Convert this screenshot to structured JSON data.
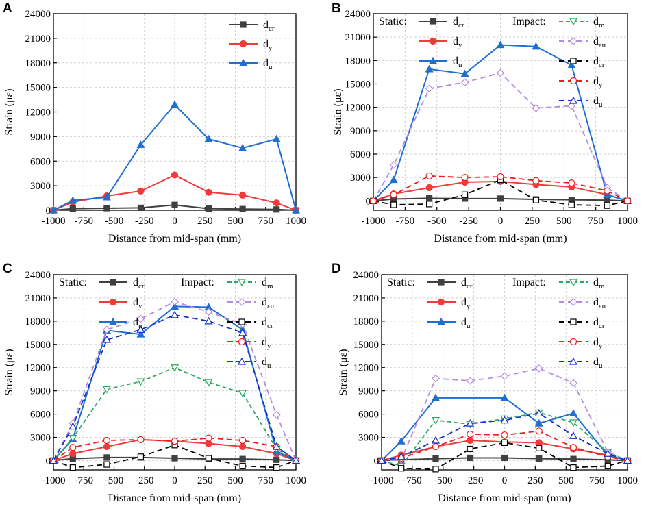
{
  "colors": {
    "static_cr": "#404040",
    "static_y": "#f03b3b",
    "static_u": "#1f6fd0",
    "impact_m": "#2ea860",
    "impact_eu": "#b48be0",
    "impact_cr": "#000000",
    "impact_y": "#ee1c1c",
    "impact_u": "#1230c8"
  },
  "chart_data": [
    {
      "panel": "A",
      "type": "line",
      "xlabel": "Distance from mid-span (mm)",
      "ylabel": "Strain (με)",
      "xlim": [
        -1000,
        1000
      ],
      "ylim": [
        0,
        24000
      ],
      "xticks": [
        "-1000",
        "-750",
        "-500",
        "-250",
        "0",
        "250",
        "500",
        "750",
        "1000"
      ],
      "yticks": [
        "0",
        "3000",
        "6000",
        "9000",
        "12000",
        "15000",
        "18000",
        "21000",
        "24000"
      ],
      "legend": {
        "static_label": "",
        "impact_label": ""
      },
      "series": [
        {
          "key": "s_cr",
          "name": "d",
          "sub": "cr",
          "group": "static",
          "color_key": "static_cr",
          "marker": "square-filled",
          "x": [
            -1000,
            -840,
            -560,
            -280,
            0,
            280,
            560,
            840,
            1000
          ],
          "y": [
            0,
            200,
            250,
            300,
            650,
            200,
            150,
            100,
            0
          ]
        },
        {
          "key": "s_y",
          "name": "d",
          "sub": "y",
          "group": "static",
          "color_key": "static_y",
          "marker": "circle-filled",
          "x": [
            -1000,
            -840,
            -560,
            -280,
            0,
            280,
            560,
            840,
            1000
          ],
          "y": [
            0,
            1000,
            1750,
            2350,
            4300,
            2200,
            1850,
            900,
            0
          ]
        },
        {
          "key": "s_u",
          "name": "d",
          "sub": "u",
          "group": "static",
          "color_key": "static_u",
          "marker": "triangle-filled",
          "x": [
            -1000,
            -840,
            -560,
            -280,
            0,
            280,
            560,
            840,
            1000
          ],
          "y": [
            0,
            1200,
            1600,
            8000,
            12900,
            8700,
            7600,
            8700,
            0
          ]
        }
      ]
    },
    {
      "panel": "B",
      "type": "line",
      "xlabel": "Distance from mid-span (mm)",
      "ylabel": "Strain (με)",
      "xlim": [
        -1000,
        1000
      ],
      "ylim": [
        -1200,
        24000
      ],
      "xticks": [
        "-1000",
        "-750",
        "-500",
        "-250",
        "0",
        "250",
        "500",
        "750",
        "1000"
      ],
      "yticks": [
        "0",
        "3000",
        "6000",
        "9000",
        "12000",
        "15000",
        "18000",
        "21000",
        "24000"
      ],
      "legend": {
        "static_label": "Static:",
        "impact_label": "Impact:"
      },
      "series": [
        {
          "key": "s_cr",
          "name": "d",
          "sub": "cr",
          "group": "static",
          "color_key": "static_cr",
          "marker": "square-filled",
          "x": [
            -1000,
            -840,
            -560,
            -280,
            0,
            280,
            560,
            840,
            1000
          ],
          "y": [
            0,
            250,
            350,
            300,
            300,
            200,
            150,
            100,
            0
          ]
        },
        {
          "key": "s_y",
          "name": "d",
          "sub": "y",
          "group": "static",
          "color_key": "static_y",
          "marker": "circle-filled",
          "x": [
            -1000,
            -840,
            -560,
            -280,
            0,
            280,
            560,
            840,
            1000
          ],
          "y": [
            0,
            900,
            1700,
            2400,
            2500,
            2100,
            1800,
            800,
            0
          ]
        },
        {
          "key": "s_u",
          "name": "d",
          "sub": "u",
          "group": "static",
          "color_key": "static_u",
          "marker": "triangle-filled",
          "x": [
            -1000,
            -840,
            -560,
            -280,
            0,
            280,
            560,
            840,
            1000
          ],
          "y": [
            0,
            2700,
            16900,
            16300,
            20000,
            19800,
            17400,
            800,
            0
          ]
        },
        {
          "key": "i_m",
          "name": "d",
          "sub": "m",
          "group": "impact",
          "color_key": "impact_m",
          "marker": "triangle-down-open",
          "dash": "6,4",
          "x": [],
          "y": []
        },
        {
          "key": "i_eu",
          "name": "d",
          "sub": "εu",
          "group": "impact",
          "color_key": "impact_eu",
          "marker": "diamond-open",
          "dash": "8,5",
          "x": [
            -1000,
            -840,
            -560,
            -280,
            0,
            280,
            560,
            840,
            1000
          ],
          "y": [
            0,
            4600,
            14400,
            15200,
            16400,
            11900,
            12200,
            1700,
            0
          ]
        },
        {
          "key": "i_cr",
          "name": "d",
          "sub": "cr",
          "group": "impact",
          "color_key": "impact_cr",
          "marker": "square-open",
          "dash": "8,5",
          "x": [
            -1000,
            -840,
            -560,
            -280,
            0,
            280,
            560,
            840,
            1000
          ],
          "y": [
            0,
            -500,
            -400,
            800,
            2700,
            100,
            -500,
            -600,
            0
          ]
        },
        {
          "key": "i_y",
          "name": "d",
          "sub": "y",
          "group": "impact",
          "color_key": "impact_y",
          "marker": "circle-open",
          "dash": "8,5",
          "x": [
            -1000,
            -840,
            -560,
            -280,
            0,
            280,
            560,
            840,
            1000
          ],
          "y": [
            0,
            800,
            3200,
            3000,
            3100,
            2600,
            2300,
            1300,
            0
          ]
        },
        {
          "key": "i_u",
          "name": "d",
          "sub": "u",
          "group": "impact",
          "color_key": "impact_u",
          "marker": "triangle-open",
          "dash": "8,5",
          "x": [],
          "y": []
        }
      ]
    },
    {
      "panel": "C",
      "type": "line",
      "xlabel": "Distance from mid-span (mm)",
      "ylabel": "Strain (με)",
      "xlim": [
        -1000,
        1000
      ],
      "ylim": [
        -1200,
        24000
      ],
      "xticks": [
        "-1000",
        "-750",
        "-500",
        "-250",
        "0",
        "250",
        "500",
        "750",
        "1000"
      ],
      "yticks": [
        "0",
        "3000",
        "6000",
        "9000",
        "12000",
        "15000",
        "18000",
        "21000",
        "24000"
      ],
      "legend": {
        "static_label": "Static:",
        "impact_label": "Impact:"
      },
      "series": [
        {
          "key": "s_cr",
          "name": "d",
          "sub": "cr",
          "group": "static",
          "color_key": "static_cr",
          "marker": "square-filled",
          "x": [
            -1000,
            -840,
            -560,
            -280,
            0,
            280,
            560,
            840,
            1000
          ],
          "y": [
            0,
            250,
            400,
            400,
            300,
            200,
            200,
            100,
            0
          ]
        },
        {
          "key": "s_y",
          "name": "d",
          "sub": "y",
          "group": "static",
          "color_key": "static_y",
          "marker": "circle-filled",
          "x": [
            -1000,
            -840,
            -560,
            -280,
            0,
            280,
            560,
            840,
            1000
          ],
          "y": [
            0,
            900,
            1800,
            2700,
            2500,
            2200,
            1800,
            900,
            0
          ]
        },
        {
          "key": "s_u",
          "name": "d",
          "sub": "u",
          "group": "static",
          "color_key": "static_u",
          "marker": "triangle-filled",
          "x": [
            -1000,
            -840,
            -560,
            -280,
            0,
            280,
            560,
            840,
            1000
          ],
          "y": [
            0,
            2800,
            16800,
            16300,
            19900,
            19800,
            16900,
            1200,
            0
          ]
        },
        {
          "key": "i_m",
          "name": "d",
          "sub": "m",
          "group": "impact",
          "color_key": "impact_m",
          "marker": "triangle-down-open",
          "dash": "6,4",
          "x": [
            -1000,
            -840,
            -560,
            -280,
            0,
            280,
            560,
            840,
            1000
          ],
          "y": [
            0,
            2900,
            9200,
            10200,
            12000,
            10100,
            8700,
            1500,
            0
          ]
        },
        {
          "key": "i_eu",
          "name": "d",
          "sub": "εu",
          "group": "impact",
          "color_key": "impact_eu",
          "marker": "diamond-open",
          "dash": "8,5",
          "x": [
            -1000,
            -840,
            -560,
            -280,
            0,
            280,
            560,
            840,
            1000
          ],
          "y": [
            0,
            4800,
            16900,
            18300,
            20500,
            19200,
            17600,
            5900,
            0
          ]
        },
        {
          "key": "i_cr",
          "name": "d",
          "sub": "cr",
          "group": "impact",
          "color_key": "impact_cr",
          "marker": "square-open",
          "dash": "8,5",
          "x": [
            -1000,
            -840,
            -560,
            -280,
            0,
            280,
            560,
            840,
            1000
          ],
          "y": [
            0,
            -900,
            -500,
            500,
            2000,
            300,
            -700,
            -900,
            0
          ]
        },
        {
          "key": "i_y",
          "name": "d",
          "sub": "y",
          "group": "impact",
          "color_key": "impact_y",
          "marker": "circle-open",
          "dash": "8,5",
          "x": [
            -1000,
            -840,
            -560,
            -280,
            0,
            280,
            560,
            840,
            1000
          ],
          "y": [
            0,
            1700,
            2600,
            2700,
            2500,
            2900,
            2600,
            1800,
            0
          ]
        },
        {
          "key": "i_u",
          "name": "d",
          "sub": "u",
          "group": "impact",
          "color_key": "impact_u",
          "marker": "triangle-open",
          "dash": "8,5",
          "x": [
            -1000,
            -840,
            -560,
            -280,
            0,
            280,
            560,
            840,
            1000
          ],
          "y": [
            0,
            4400,
            15600,
            16900,
            18800,
            18000,
            16500,
            1800,
            0
          ]
        }
      ]
    },
    {
      "panel": "D",
      "type": "line",
      "xlabel": "Distance from mid-span (mm)",
      "ylabel": "Strain (με)",
      "xlim": [
        -1000,
        1000
      ],
      "ylim": [
        -1200,
        24000
      ],
      "xticks": [
        "-1000",
        "-750",
        "-500",
        "-250",
        "0",
        "250",
        "500",
        "750",
        "1000"
      ],
      "yticks": [
        "0",
        "3000",
        "6000",
        "9000",
        "12000",
        "15000",
        "18000",
        "21000",
        "24000"
      ],
      "legend": {
        "static_label": "Static:",
        "impact_label": "Impact:"
      },
      "series": [
        {
          "key": "s_cr",
          "name": "d",
          "sub": "cr",
          "group": "static",
          "color_key": "static_cr",
          "marker": "square-filled",
          "x": [
            -1000,
            -840,
            -560,
            -280,
            0,
            280,
            560,
            840,
            1000
          ],
          "y": [
            0,
            100,
            250,
            350,
            350,
            250,
            200,
            100,
            0
          ]
        },
        {
          "key": "s_y",
          "name": "d",
          "sub": "y",
          "group": "static",
          "color_key": "static_y",
          "marker": "circle-filled",
          "x": [
            -1000,
            -840,
            -560,
            -280,
            0,
            280,
            560,
            840,
            1000
          ],
          "y": [
            0,
            700,
            1800,
            2600,
            2400,
            2300,
            1500,
            700,
            0
          ]
        },
        {
          "key": "s_u",
          "name": "d",
          "sub": "u",
          "group": "static",
          "color_key": "static_u",
          "marker": "triangle-filled",
          "x": [
            -1000,
            -840,
            -560,
            0,
            280,
            560,
            840,
            1000
          ],
          "y": [
            0,
            2500,
            8100,
            8100,
            4800,
            6100,
            700,
            0
          ]
        },
        {
          "key": "s_u_gap",
          "name": "",
          "sub": "",
          "group": "none",
          "color_key": "static_u",
          "marker": "none",
          "dash": "2,4",
          "legend": false,
          "x": [
            -560,
            0
          ],
          "y": [
            8100,
            8100
          ]
        },
        {
          "key": "i_m",
          "name": "d",
          "sub": "m",
          "group": "impact",
          "color_key": "impact_m",
          "marker": "triangle-down-open",
          "dash": "6,4",
          "x": [
            -1000,
            -840,
            -560,
            -280,
            0,
            280,
            560,
            840,
            1000
          ],
          "y": [
            0,
            -700,
            5200,
            4700,
            5400,
            6200,
            4900,
            1100,
            0
          ]
        },
        {
          "key": "i_eu",
          "name": "d",
          "sub": "εu",
          "group": "impact",
          "color_key": "impact_eu",
          "marker": "diamond-open",
          "dash": "8,5",
          "x": [
            -1000,
            -840,
            -560,
            -280,
            0,
            280,
            560,
            840,
            1000
          ],
          "y": [
            0,
            100,
            10600,
            10300,
            10900,
            11900,
            10000,
            1100,
            0
          ]
        },
        {
          "key": "i_cr",
          "name": "d",
          "sub": "cr",
          "group": "impact",
          "color_key": "impact_cr",
          "marker": "square-open",
          "dash": "8,5",
          "x": [
            -1000,
            -840,
            -560,
            -280,
            0,
            280,
            560,
            840,
            1000
          ],
          "y": [
            0,
            -1000,
            -1100,
            1500,
            2300,
            1600,
            -900,
            -700,
            0
          ]
        },
        {
          "key": "i_y",
          "name": "d",
          "sub": "y",
          "group": "impact",
          "color_key": "impact_y",
          "marker": "circle-open",
          "dash": "8,5",
          "x": [
            -1000,
            -840,
            -560,
            -280,
            0,
            280,
            560,
            840,
            1000
          ],
          "y": [
            0,
            300,
            1800,
            3400,
            3300,
            3800,
            1700,
            500,
            0
          ]
        },
        {
          "key": "i_u",
          "name": "d",
          "sub": "u",
          "group": "impact",
          "color_key": "impact_u",
          "marker": "triangle-open",
          "dash": "8,5",
          "x": [
            -1000,
            -840,
            -560,
            -280,
            0,
            280,
            560,
            840,
            1000
          ],
          "y": [
            0,
            500,
            2600,
            4800,
            5200,
            6100,
            3200,
            900,
            0
          ]
        }
      ]
    }
  ]
}
